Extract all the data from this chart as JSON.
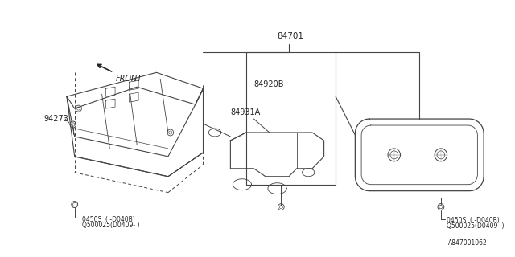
{
  "bg_color": "#ffffff",
  "line_color": "#444444",
  "text_color": "#222222",
  "diagram_id": "A847001062",
  "figsize": [
    6.4,
    3.2
  ],
  "dpi": 100,
  "label_84701": "84701",
  "label_84920B": "84920B",
  "label_84931A": "84931A",
  "label_94273": "94273",
  "label_bolt1": "0450S  ( -D040B)",
  "label_bolt2": "Q500025(D0409- )",
  "label_front": "FRONT"
}
